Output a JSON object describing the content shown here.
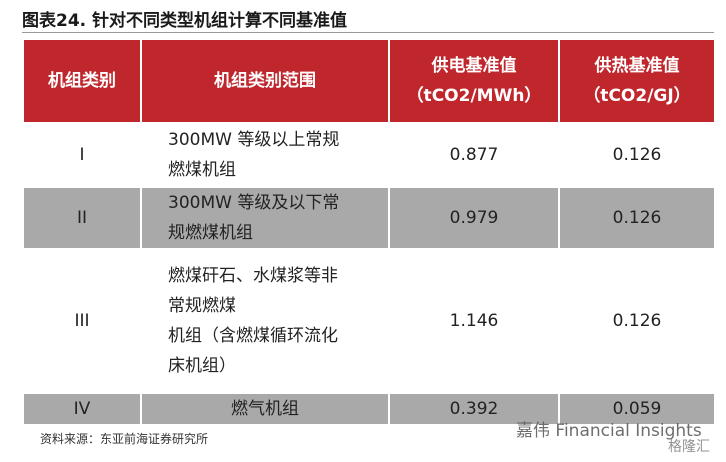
{
  "title": "图表24. 针对不同类型机组计算不同基准值",
  "table": {
    "header": [
      [
        "机组类别"
      ],
      [
        "机组类别范围"
      ],
      [
        "供电基准值",
        "（tCO2/MWh）"
      ],
      [
        "供热基准值",
        "（tCO2/GJ）"
      ]
    ],
    "rows": [
      [
        [
          "I"
        ],
        [
          "300MW 等级以上常规",
          "燃煤机组"
        ],
        [
          "0.877"
        ],
        [
          "0.126"
        ]
      ],
      [
        [
          "II"
        ],
        [
          "300MW 等级及以下常",
          "规燃煤机组"
        ],
        [
          "0.979"
        ],
        [
          "0.126"
        ]
      ],
      [
        [
          "III"
        ],
        [
          "燃煤矸石、水煤浆等非",
          "常规燃煤",
          "机组（含燃煤循环流化",
          "床机组）"
        ],
        [
          "1.146"
        ],
        [
          "0.126"
        ]
      ],
      [
        [
          "IV"
        ],
        [
          "燃气机组"
        ],
        [
          "0.392"
        ],
        [
          "0.059"
        ]
      ]
    ]
  },
  "source": "资料来源：东亚前海证券研究所",
  "watermark": "嘉伟 Financial Insights",
  "watermark2": "格隆汇"
}
